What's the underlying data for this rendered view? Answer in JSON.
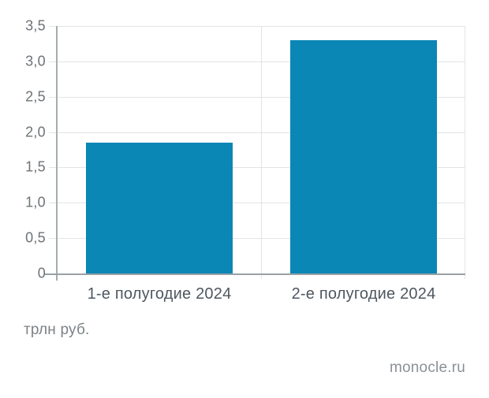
{
  "chart_data": {
    "type": "bar",
    "categories": [
      "1-е полугодие 2024",
      "2-е полугодие 2024"
    ],
    "values": [
      1.85,
      3.3
    ],
    "title": "",
    "xlabel": "",
    "ylabel": "трлн руб.",
    "ylim": [
      0,
      3.5
    ],
    "ytick_step": 0.5,
    "ytick_labels": [
      "3,5",
      "3,0",
      "2,5",
      "2,0",
      "1,5",
      "1,0",
      "0,5",
      "0"
    ],
    "grid": true,
    "legend": "none",
    "bar_color": "#0a87b4"
  },
  "footer": {
    "units_label": "трлн руб.",
    "source": "monocle.ru"
  },
  "colors": {
    "bar": "#0a87b4",
    "gridline": "#e2e4e5",
    "axis": "#9aa1a6",
    "ytick_text": "#6e7377",
    "xtick_text": "#4e5760",
    "caption_text": "#7c8287",
    "source_text": "#8b9095",
    "background": "#ffffff"
  }
}
